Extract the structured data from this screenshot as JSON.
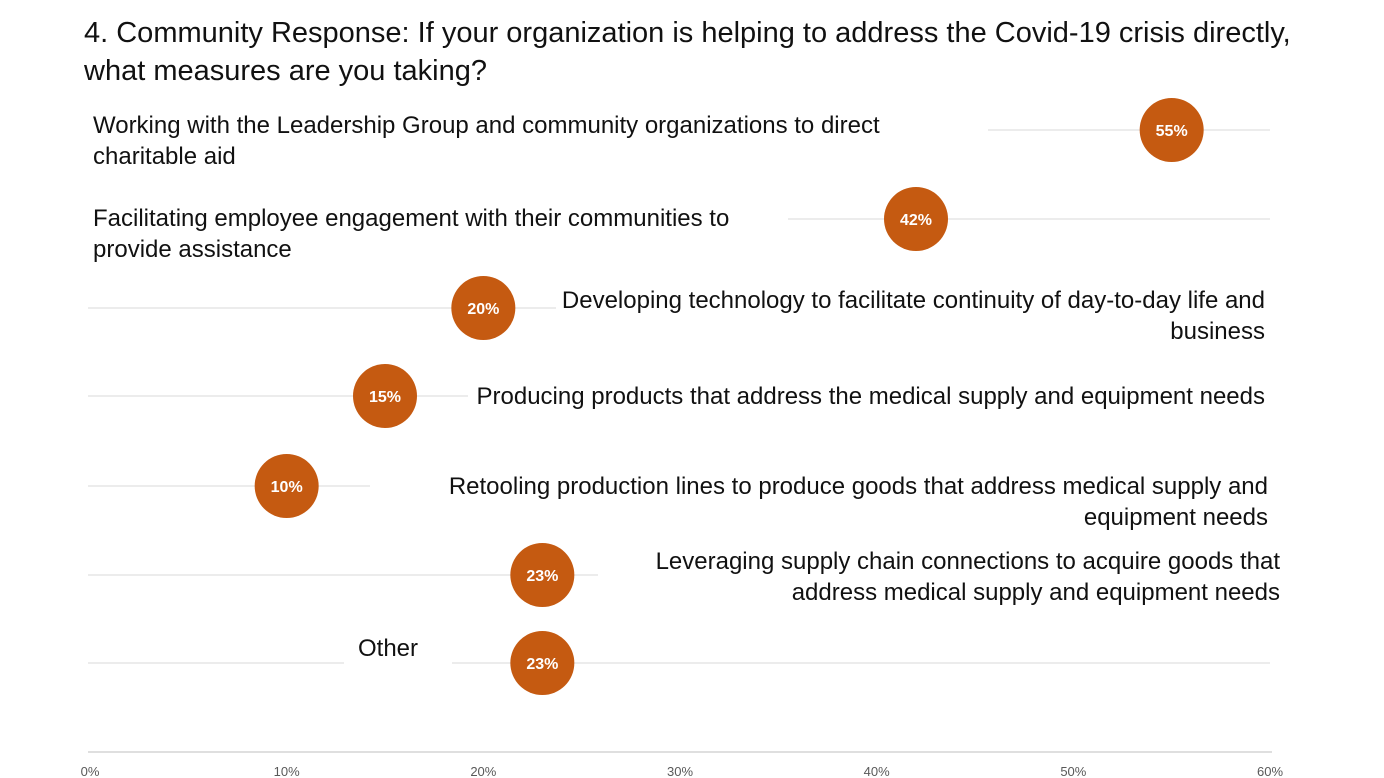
{
  "title": "4. Community Response: If your organization is helping to address the Covid-19 crisis directly, what measures are you taking?",
  "colors": {
    "dot": "#c55a11",
    "gridline": "#d9d9d9",
    "axis_line": "#bfbfbf",
    "tick_label": "#595959",
    "value_label": "#ffffff"
  },
  "chart_data": {
    "type": "scatter",
    "title": "4. Community Response: If your organization is helping to address the Covid-19 crisis directly, what measures are you taking?",
    "xlabel": "",
    "ylabel": "",
    "xlim": [
      0,
      60
    ],
    "x_ticks": [
      "0%",
      "10%",
      "20%",
      "30%",
      "40%",
      "50%",
      "60%"
    ],
    "x_tick_values": [
      0,
      10,
      20,
      30,
      40,
      50,
      60
    ],
    "grid": true,
    "legend": "none",
    "categories": [
      "Working with the Leadership Group and community organizations to direct charitable aid",
      "Facilitating employee engagement with their communities to provide assistance",
      "Developing technology to facilitate continuity of day-to-day life and business",
      "Producing products that address the medical supply and equipment needs",
      "Retooling production lines to produce goods that address medical supply and equipment needs",
      "Leveraging supply chain connections to acquire goods that address medical supply and equipment needs",
      "Other"
    ],
    "values": [
      55,
      42,
      20,
      15,
      10,
      23,
      23
    ],
    "data_labels": [
      "55%",
      "42%",
      "20%",
      "15%",
      "10%",
      "23%",
      "23%"
    ]
  }
}
